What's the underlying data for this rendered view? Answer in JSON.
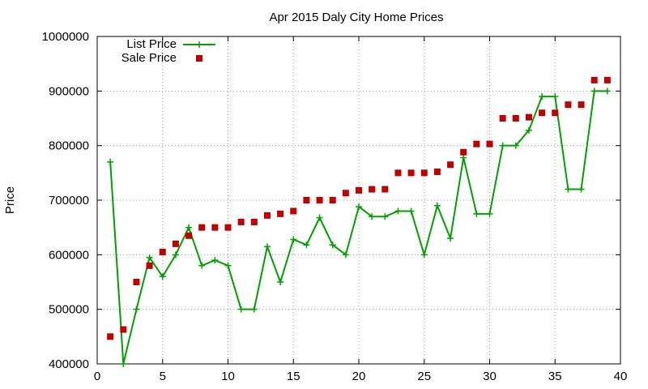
{
  "chart_data": {
    "type": "line",
    "title": "Apr 2015 Daly City Home Prices",
    "xlabel": "",
    "ylabel": "Price",
    "xlim": [
      0,
      40
    ],
    "ylim": [
      400000,
      1000000
    ],
    "x_ticks": [
      0,
      5,
      10,
      15,
      20,
      25,
      30,
      35,
      40
    ],
    "y_ticks": [
      400000,
      500000,
      600000,
      700000,
      800000,
      900000,
      1000000
    ],
    "grid": true,
    "legend_position": "top-left",
    "series": [
      {
        "name": "List Price",
        "style": "line-with-plus-markers",
        "color": "#00a000",
        "x": [
          1,
          2,
          3,
          4,
          5,
          6,
          7,
          8,
          9,
          10,
          11,
          12,
          13,
          14,
          15,
          16,
          17,
          18,
          19,
          20,
          21,
          22,
          23,
          24,
          25,
          26,
          27,
          28,
          29,
          30,
          31,
          32,
          33,
          34,
          35,
          36,
          37,
          38,
          39
        ],
        "values": [
          770000,
          400000,
          500000,
          595000,
          560000,
          600000,
          650000,
          580000,
          590000,
          580000,
          500000,
          500000,
          615000,
          550000,
          628000,
          618000,
          668000,
          618000,
          600000,
          688000,
          670000,
          670000,
          680000,
          680000,
          600000,
          690000,
          630000,
          778000,
          675000,
          675000,
          800000,
          800000,
          828000,
          890000,
          890000,
          720000,
          720000,
          900000,
          900000
        ]
      },
      {
        "name": "Sale Price",
        "style": "square-markers",
        "color": "#c00000",
        "x": [
          1,
          2,
          3,
          4,
          5,
          6,
          7,
          8,
          9,
          10,
          11,
          12,
          13,
          14,
          15,
          16,
          17,
          18,
          19,
          20,
          21,
          22,
          23,
          24,
          25,
          26,
          27,
          28,
          29,
          30,
          31,
          32,
          33,
          34,
          35,
          36,
          37,
          38,
          39
        ],
        "values": [
          450000,
          463000,
          550000,
          580000,
          605000,
          620000,
          635000,
          650000,
          650000,
          650000,
          660000,
          660000,
          672000,
          675000,
          680000,
          700000,
          700000,
          700000,
          713000,
          718000,
          720000,
          720000,
          750000,
          750000,
          750000,
          752000,
          765000,
          788000,
          803000,
          803000,
          850000,
          850000,
          852000,
          860000,
          860000,
          875000,
          875000,
          920000,
          920000
        ]
      }
    ]
  }
}
